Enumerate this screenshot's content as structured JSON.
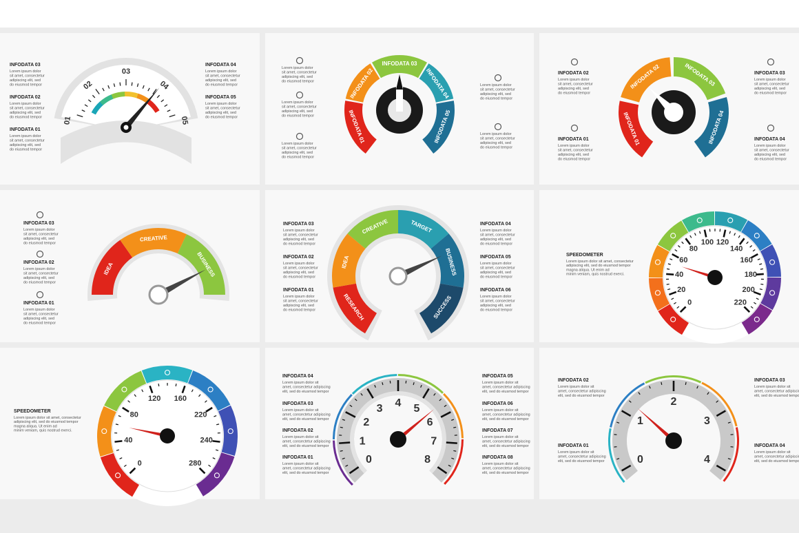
{
  "panels": [
    {
      "items": [
        {
          "title": "INFODATA 03",
          "text": [
            "Lorem ipsum dolor",
            "sit amet, consectetur",
            "adipiscing elit, sed",
            "do eiusmod tempor"
          ]
        },
        {
          "title": "INFODATA 02",
          "text": [
            "Lorem ipsum dolor",
            "sit amet, consectetur",
            "adipiscing elit, sed",
            "do eiusmod tempor"
          ]
        },
        {
          "title": "INFODATA 01",
          "text": [
            "Lorem ipsum dolor",
            "sit amet, consectetur",
            "adipiscing elit, sed",
            "do eiusmod tempor"
          ]
        },
        {
          "title": "INFODATA 04",
          "text": [
            "Lorem ipsum dolor",
            "sit amet, consectetur",
            "adipiscing elit, sed",
            "do eiusmod tempor"
          ]
        },
        {
          "title": "INFODATA 05",
          "text": [
            "Lorem ipsum dolor",
            "sit amet, consectetur",
            "adipiscing elit, sed",
            "do eiusmod tempor"
          ]
        }
      ],
      "ticks": [
        "01",
        "02",
        "03",
        "04",
        "05"
      ]
    },
    {
      "items": [
        {
          "text": [
            "Lorem ipsum dolor",
            "sit amet, consectetur",
            "adipiscing elit, sed",
            "do eiusmod tempor"
          ]
        },
        {
          "text": [
            "Lorem ipsum dolor",
            "sit amet, consectetur",
            "adipiscing elit, sed",
            "do eiusmod tempor"
          ]
        },
        {
          "text": [
            "Lorem ipsum dolor",
            "sit amet, consectetur",
            "adipiscing elit, sed",
            "do eiusmod tempor"
          ]
        },
        {
          "text": [
            "Lorem ipsum dolor",
            "sit amet, consectetur",
            "adipiscing elit, sed",
            "do eiusmod tempor"
          ]
        },
        {
          "text": [
            "Lorem ipsum dolor",
            "sit amet, consectetur",
            "adipiscing elit, sed",
            "do eiusmod tempor"
          ]
        }
      ],
      "segments": [
        {
          "label": "INFODATA 01",
          "color": "#e0251b"
        },
        {
          "label": "INFODATA 02",
          "color": "#f39019"
        },
        {
          "label": "INFODATA 03",
          "color": "#8cc63f"
        },
        {
          "label": "INFODATA 04",
          "color": "#2a9fb0"
        },
        {
          "label": "INFODATA 05",
          "color": "#1f6f94"
        }
      ]
    },
    {
      "items": [
        {
          "title": "INFODATA 02",
          "text": [
            "Lorem ipsum dolor",
            "sit amet, consectetur",
            "adipiscing elit, sed",
            "do eiusmod tempor"
          ]
        },
        {
          "title": "INFODATA 01",
          "text": [
            "Lorem ipsum dolor",
            "sit amet, consectetur",
            "adipiscing elit, sed",
            "do eiusmod tempor"
          ]
        },
        {
          "title": "INFODATA 03",
          "text": [
            "Lorem ipsum dolor",
            "sit amet, consectetur",
            "adipiscing elit, sed",
            "do eiusmod tempor"
          ]
        },
        {
          "title": "INFODATA 04",
          "text": [
            "Lorem ipsum dolor",
            "sit amet, consectetur",
            "adipiscing elit, sed",
            "do eiusmod tempor"
          ]
        }
      ],
      "segments": [
        {
          "label": "INFODATA 01",
          "color": "#e0251b"
        },
        {
          "label": "INFODATA 02",
          "color": "#f39019"
        },
        {
          "label": "INFODATA 03",
          "color": "#8cc63f"
        },
        {
          "label": "INFODATA 04",
          "color": "#1f6f94"
        }
      ]
    },
    {
      "items": [
        {
          "title": "INFODATA 03",
          "text": [
            "Lorem ipsum dolor",
            "sit amet, consectetur",
            "adipiscing elit, sed",
            "do eiusmod tempor"
          ]
        },
        {
          "title": "INFODATA 02",
          "text": [
            "Lorem ipsum dolor",
            "sit amet, consectetur",
            "adipiscing elit, sed",
            "do eiusmod tempor"
          ]
        },
        {
          "title": "INFODATA 01",
          "text": [
            "Lorem ipsum dolor",
            "sit amet, consectetur",
            "adipiscing elit, sed",
            "do eiusmod tempor"
          ]
        }
      ],
      "segments": [
        {
          "label": "IDEA",
          "color": "#e0251b"
        },
        {
          "label": "CREATIVE",
          "color": "#f39019"
        },
        {
          "label": "BUSINESS",
          "color": "#8cc63f"
        }
      ]
    },
    {
      "items": [
        {
          "title": "INFODATA 03",
          "text": [
            "Lorem ipsum dolor",
            "sit amet, consectetur",
            "adipiscing elit, sed",
            "do eiusmod tempor"
          ]
        },
        {
          "title": "INFODATA 02",
          "text": [
            "Lorem ipsum dolor",
            "sit amet, consectetur",
            "adipiscing elit, sed",
            "do eiusmod tempor"
          ]
        },
        {
          "title": "INFODATA 01",
          "text": [
            "Lorem ipsum dolor",
            "sit amet, consectetur",
            "adipiscing elit, sed",
            "do eiusmod tempor"
          ]
        },
        {
          "title": "INFODATA 04",
          "text": [
            "Lorem ipsum dolor",
            "sit amet, consectetur",
            "adipiscing elit, sed",
            "do eiusmod tempor"
          ]
        },
        {
          "title": "INFODATA 05",
          "text": [
            "Lorem ipsum dolor",
            "sit amet, consectetur",
            "adipiscing elit, sed",
            "do eiusmod tempor"
          ]
        },
        {
          "title": "INFODATA 06",
          "text": [
            "Lorem ipsum dolor",
            "sit amet, consectetur",
            "adipiscing elit, sed",
            "do eiusmod tempor"
          ]
        }
      ],
      "segments": [
        {
          "label": "RESEARCH",
          "color": "#e0251b"
        },
        {
          "label": "IDEA",
          "color": "#f39019"
        },
        {
          "label": "CREATIVE",
          "color": "#8cc63f"
        },
        {
          "label": "TARGET",
          "color": "#2a9fb0"
        },
        {
          "label": "BUSINESS",
          "color": "#1f6f94"
        },
        {
          "label": "SUCCESS",
          "color": "#1d4a6b"
        }
      ]
    },
    {
      "title": "SPEEDOMETER",
      "text": [
        "Lorem ipsum dolor sit amet, consectetur",
        "adipiscing elit, sed do eiusmod tempor",
        "magna aliqua. Ut enim ad",
        "minim veniam, quis nostrud exerci."
      ],
      "ticks": [
        0,
        20,
        40,
        60,
        80,
        100,
        120,
        140,
        160,
        180,
        200,
        220
      ],
      "segment_colors": [
        "#e0251b",
        "#f3701c",
        "#f39019",
        "#8cc63f",
        "#3dba8c",
        "#2a9fb0",
        "#2c7fc4",
        "#3f51b5",
        "#5e3a9e",
        "#7b2a8c"
      ]
    },
    {
      "title": "SPEEDOMETER",
      "text": [
        "Lorem ipsum dolor sit amet, consectetur",
        "adipiscing elit, sed do eiusmod tempor",
        "magna aliqua. Ut enim ad",
        "minim veniam, quis nostrud exerci."
      ],
      "ticks": [
        0,
        40,
        80,
        120,
        160,
        220,
        240,
        280
      ],
      "segment_colors": [
        "#e0251b",
        "#f39019",
        "#8cc63f",
        "#2ab3c4",
        "#2c7fc4",
        "#3f51b5",
        "#6a2c91"
      ]
    },
    {
      "items": [
        {
          "title": "INFODATA 04",
          "text": [
            "Lorem ipsum dolor sit",
            "amet, consectetur adipiscing",
            "elit, sed do eiusmod tempor"
          ]
        },
        {
          "title": "INFODATA 03",
          "text": [
            "Lorem ipsum dolor sit",
            "amet, consectetur adipiscing",
            "elit, sed do eiusmod tempor"
          ]
        },
        {
          "title": "INFODATA 02",
          "text": [
            "Lorem ipsum dolor sit",
            "amet, consectetur adipiscing",
            "elit, sed do eiusmod tempor"
          ]
        },
        {
          "title": "INFODATA 01",
          "text": [
            "Lorem ipsum dolor sit",
            "amet, consectetur adipiscing",
            "elit, sed do eiusmod tempor"
          ]
        },
        {
          "title": "INFODATA 05",
          "text": [
            "Lorem ipsum dolor sit",
            "amet, consectetur adipiscing",
            "elit, sed do eiusmod tempor"
          ]
        },
        {
          "title": "INFODATA 06",
          "text": [
            "Lorem ipsum dolor sit",
            "amet, consectetur adipiscing",
            "elit, sed do eiusmod tempor"
          ]
        },
        {
          "title": "INFODATA 07",
          "text": [
            "Lorem ipsum dolor sit",
            "amet, consectetur adipiscing",
            "elit, sed do eiusmod tempor"
          ]
        },
        {
          "title": "INFODATA 08",
          "text": [
            "Lorem ipsum dolor sit",
            "amet, consectetur adipiscing",
            "elit, sed do eiusmod tempor"
          ]
        }
      ],
      "ticks": [
        0,
        1,
        2,
        3,
        4,
        5,
        6,
        7,
        8
      ]
    },
    {
      "items": [
        {
          "title": "INFODATA 02",
          "text": [
            "Lorem ipsum dolor sit",
            "amet, consectetur adipiscing",
            "elit, sed do eiusmod tempor"
          ]
        },
        {
          "title": "INFODATA 01",
          "text": [
            "Lorem ipsum dolor sit",
            "amet, consectetur adipiscing",
            "elit, sed do eiusmod tempor"
          ]
        },
        {
          "title": "INFODATA 03",
          "text": [
            "Lorem ipsum dolor sit",
            "amet, consectetur adipiscing",
            "elit, sed do eiusmod tempor"
          ]
        },
        {
          "title": "INFODATA 04",
          "text": [
            "Lorem ipsum dolor sit",
            "amet, consectetur adipiscing",
            "elit, sed do eiusmod tempor"
          ]
        }
      ],
      "ticks": [
        0,
        1,
        2,
        3,
        4
      ]
    }
  ]
}
